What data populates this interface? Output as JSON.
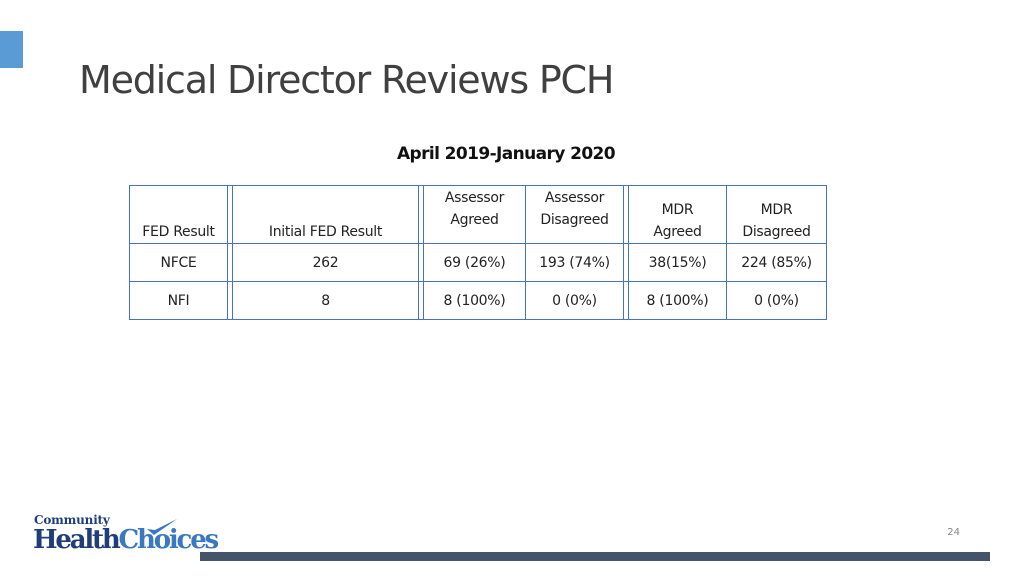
{
  "slide": {
    "title": "Medical Director Reviews PCH",
    "subtitle": "April 2019-January 2020",
    "page_number": "24",
    "accent_color": "#5b9bd5",
    "footer_bar_color": "#44546a",
    "border_color": "#4472c4"
  },
  "table": {
    "headers": {
      "fed_result": "FED Result",
      "initial_fed_result": "Initial FED Result",
      "assessor_agreed": [
        "Assessor",
        "Agreed"
      ],
      "assessor_disagreed": [
        "Assessor",
        "Disagreed"
      ],
      "mdr_agreed": [
        "MDR",
        "Agreed"
      ],
      "mdr_disagreed": [
        "MDR",
        "Disagreed"
      ]
    },
    "rows": [
      {
        "fed_result": "NFCE",
        "initial": "262",
        "assessor_agreed": "69 (26%)",
        "assessor_disagreed": "193 (74%)",
        "mdr_agreed": "38(15%)",
        "mdr_disagreed": "224 (85%)"
      },
      {
        "fed_result": "NFI",
        "initial": "8",
        "assessor_agreed": "8 (100%)",
        "assessor_disagreed": "0 (0%)",
        "mdr_agreed": "8 (100%)",
        "mdr_disagreed": "0 (0%)"
      }
    ]
  },
  "logo": {
    "line1": "Community",
    "word_health": "Health",
    "word_choices": "Choices"
  }
}
